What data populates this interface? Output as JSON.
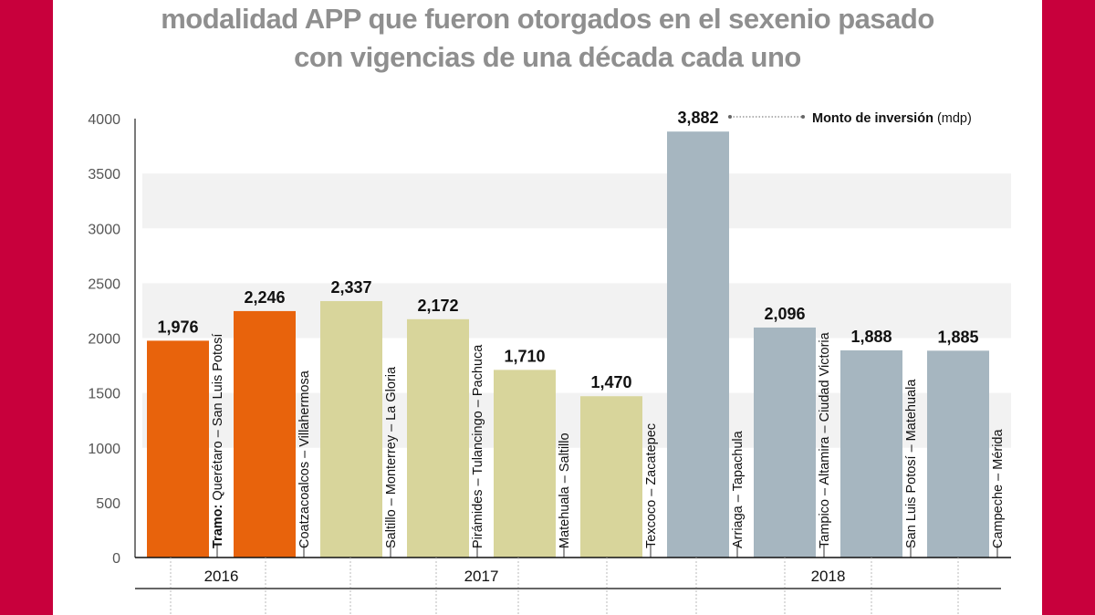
{
  "title_lines": [
    "modalidad APP que fueron otorgados en el sexenio pasado",
    "con vigencias de una década cada uno"
  ],
  "colors": {
    "frame": "#c8003c",
    "2016": "#e8630c",
    "2017": "#d8d59b",
    "2018": "#a6b6c0",
    "band": "#f2f2f2"
  },
  "chart_data": {
    "type": "bar",
    "ylim": [
      0,
      4000
    ],
    "yticks": [
      0,
      500,
      1000,
      1500,
      2000,
      2500,
      3000,
      3500,
      4000
    ],
    "annotation": {
      "bold": "Monto de inversión",
      "normal": "(mdp)"
    },
    "tramo_prefix": "Tramo:",
    "years": [
      {
        "label": "2016",
        "bars": 2
      },
      {
        "label": "2017",
        "bars": 4
      },
      {
        "label": "2018",
        "bars": 4
      }
    ],
    "bars": [
      {
        "category": "Querétaro – San Luis Potosí",
        "value": 1976,
        "label": "1,976",
        "year": "2016"
      },
      {
        "category": "Coatzacoalcos – Villahermosa",
        "value": 2246,
        "label": "2,246",
        "year": "2016"
      },
      {
        "category": "Saltillo – Monterrey – La Gloria",
        "value": 2337,
        "label": "2,337",
        "year": "2017"
      },
      {
        "category": "Pirámides – Tulancingo – Pachuca",
        "value": 2172,
        "label": "2,172",
        "year": "2017"
      },
      {
        "category": "Matehuala – Saltillo",
        "value": 1710,
        "label": "1,710",
        "year": "2017"
      },
      {
        "category": "Texcoco – Zacatepec",
        "value": 1470,
        "label": "1,470",
        "year": "2017"
      },
      {
        "category": "Arriaga – Tapachula",
        "value": 3882,
        "label": "3,882",
        "year": "2018"
      },
      {
        "category": "Tampico – Altamira – Ciudad Victoria",
        "value": 2096,
        "label": "2,096",
        "year": "2018"
      },
      {
        "category": "San Luis Potosí – Matehuala",
        "value": 1888,
        "label": "1,888",
        "year": "2018"
      },
      {
        "category": "Campeche – Mérida",
        "value": 1885,
        "label": "1,885",
        "year": "2018"
      }
    ]
  }
}
